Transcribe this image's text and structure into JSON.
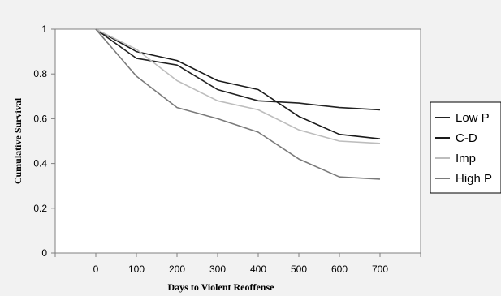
{
  "chart_data": {
    "type": "line",
    "xlabel": "Days to Violent Reoffense",
    "ylabel": "Cumulative Survival",
    "x": [
      0,
      100,
      200,
      300,
      400,
      500,
      600,
      700
    ],
    "xlim": [
      -100,
      800
    ],
    "ylim": [
      0,
      1
    ],
    "yticks": [
      0,
      0.2,
      0.4,
      0.6,
      0.8,
      1
    ],
    "yticklabels": [
      "0",
      "0.2",
      "0.4",
      "0.6",
      "0.8",
      "1"
    ],
    "xticklabels": [
      "0",
      "100",
      "200",
      "300",
      "400",
      "500",
      "600",
      "700"
    ],
    "grid": false,
    "legend_position": "right",
    "series": [
      {
        "name": "Low P",
        "color": "#222222",
        "values": [
          1,
          0.87,
          0.84,
          0.73,
          0.68,
          0.67,
          0.65,
          0.64
        ]
      },
      {
        "name": "C-D",
        "color": "#1a1a1a",
        "values": [
          1,
          0.9,
          0.86,
          0.77,
          0.73,
          0.61,
          0.53,
          0.51
        ]
      },
      {
        "name": "Imp",
        "color": "#bdbdbd",
        "values": [
          1,
          0.91,
          0.77,
          0.68,
          0.64,
          0.55,
          0.5,
          0.49
        ]
      },
      {
        "name": "High P",
        "color": "#7a7a7a",
        "values": [
          1,
          0.79,
          0.65,
          0.6,
          0.54,
          0.42,
          0.34,
          0.33
        ]
      }
    ]
  }
}
